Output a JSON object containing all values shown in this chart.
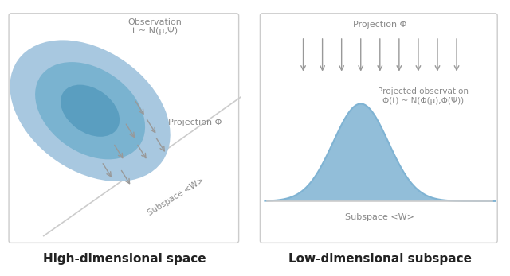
{
  "fig_width": 6.4,
  "fig_height": 3.47,
  "dpi": 100,
  "bg_color": "#ffffff",
  "panel_border": "#cccccc",
  "ellipse_colors": [
    "#a8c8e0",
    "#7ab3d0",
    "#5a9ec0"
  ],
  "gaussian_color": "#7fb3d3",
  "gaussian_alpha": 0.85,
  "arrow_color": "#999999",
  "text_color": "#888888",
  "title_color": "#222222",
  "label_left": "High-dimensional space",
  "label_right": "Low-dimensional subspace",
  "obs_text": "Observation\nt ~ N(μ,Ψ)",
  "proj_text_left": "Projection Φ",
  "proj_text_right": "Projection Φ",
  "subspace_text_left": "Subspace <W>",
  "subspace_text_right": "Subspace <W>",
  "proj_obs_text": "Projected observation\nΦ(t) ~ N(Φ(μ),Φ(Ψ))"
}
